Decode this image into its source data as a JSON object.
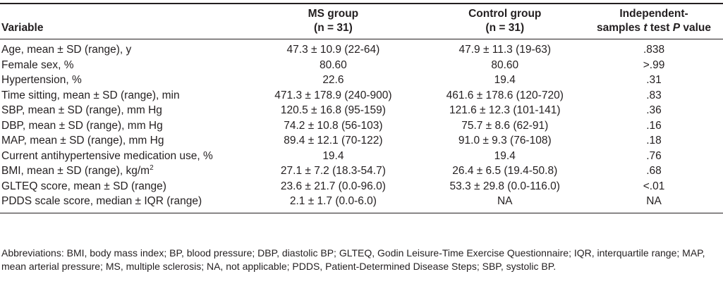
{
  "table": {
    "header": [
      [
        "Variable"
      ],
      [
        "MS group",
        "(n = 31)"
      ],
      [
        "Control group",
        "(n = 31)"
      ],
      [
        "Independent-",
        [
          "samples ",
          "t",
          " test ",
          "P",
          " value"
        ]
      ]
    ],
    "rows": [
      [
        "Age, mean ± SD (range), y",
        "47.3 ± 10.9 (22-64)",
        "47.9 ± 11.3 (19-63)",
        ".838"
      ],
      [
        "Female sex, %",
        "80.60",
        "80.60",
        ">.99"
      ],
      [
        "Hypertension, %",
        "22.6",
        "19.4",
        ".31"
      ],
      [
        "Time sitting, mean ± SD (range), min",
        "471.3 ± 178.9 (240-900)",
        "461.6 ± 178.6 (120-720)",
        ".83"
      ],
      [
        "SBP, mean ± SD (range), mm Hg",
        "120.5 ± 16.8 (95-159)",
        "121.6 ± 12.3 (101-141)",
        ".36"
      ],
      [
        "DBP, mean ± SD (range), mm Hg",
        "74.2 ± 10.8 (56-103)",
        "75.7 ± 8.6 (62-91)",
        ".16"
      ],
      [
        "MAP, mean ± SD (range), mm Hg",
        "89.4 ± 12.1 (70-122)",
        "91.0 ± 9.3 (76-108)",
        ".18"
      ],
      [
        "Current antihypertensive medication use, %",
        "19.4",
        "19.4",
        ".76"
      ],
      [
        [
          "BMI, mean ± SD (range), kg/m",
          "2"
        ],
        "27.1 ± 7.2 (18.3-54.7)",
        "26.4 ± 6.5 (19.4-50.8)",
        ".68"
      ],
      [
        "GLTEQ score, mean ± SD (range)",
        "23.6 ± 21.7 (0.0-96.0)",
        "53.3 ± 29.8 (0.0-116.0)",
        "<.01"
      ],
      [
        "PDDS scale score, median ± IQR (range)",
        "2.1 ± 1.7 (0.0-6.0)",
        "NA",
        "NA"
      ]
    ]
  },
  "footnote": "Abbreviations: BMI, body mass index; BP, blood pressure; DBP, diastolic BP; GLTEQ, Godin Leisure-Time Exercise Questionnaire; IQR, interquartile range; MAP, mean arterial pressure; MS, multiple sclerosis; NA, not applicable; PDDS, Patient-Determined Disease Steps; SBP, systolic BP."
}
